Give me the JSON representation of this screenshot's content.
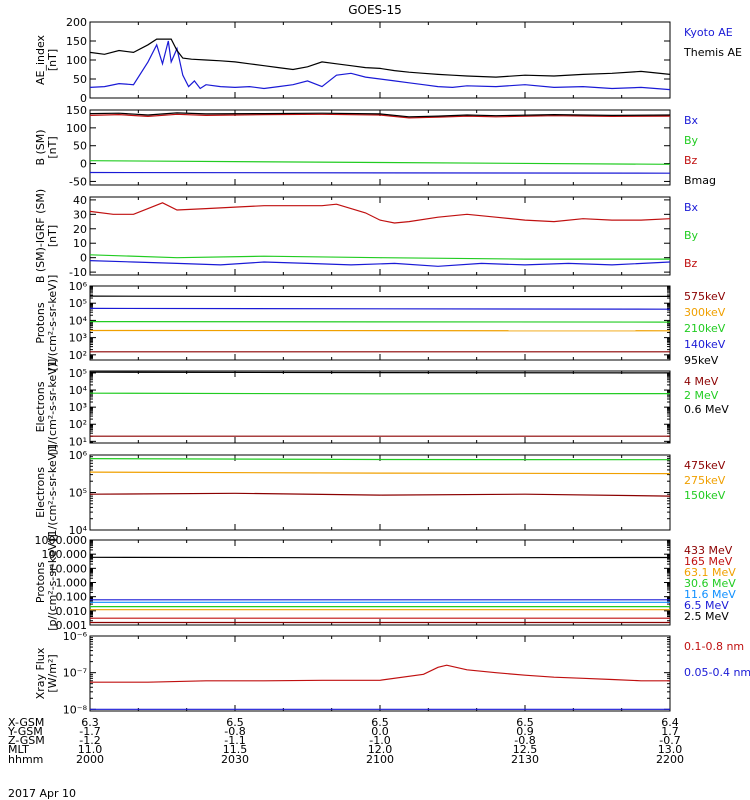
{
  "figure": {
    "title": "GOES-15",
    "date": "2017 Apr 10"
  },
  "colors": {
    "black": "#000000",
    "blue": "#1a1ad6",
    "red": "#c01010",
    "green": "#22cc22",
    "orange": "#f0a000",
    "ltblue": "#1090ff",
    "pink": "#e01090",
    "darkred": "#8b0000",
    "magenta": "#cc22cc"
  },
  "orbit": {
    "row_labels": [
      "X-GSM",
      "Y-GSM",
      "Z-GSM",
      "MLT",
      "hhmm"
    ],
    "columns": [
      {
        "values": [
          "6.3",
          "-1.7",
          "-1.2",
          "11.0",
          "2000"
        ]
      },
      {
        "values": [
          "6.5",
          "-0.8",
          "-1.1",
          "11.5",
          "2030"
        ]
      },
      {
        "values": [
          "6.5",
          "0.0",
          "-1.0",
          "12.0",
          "2100"
        ]
      },
      {
        "values": [
          "6.5",
          "0.9",
          "-0.8",
          "12.5",
          "2130"
        ]
      },
      {
        "values": [
          "6.4",
          "1.7",
          "-0.7",
          "13.0",
          "2200"
        ]
      }
    ]
  },
  "chart_data": [
    {
      "type": "line",
      "ylabel": "AE_index\n[nT]",
      "ylim": [
        0,
        200
      ],
      "yticks": [
        "0",
        "50",
        "100",
        "150",
        "200"
      ],
      "xlim": [
        2000,
        2200
      ],
      "series": [
        {
          "name": "Kyoto AE",
          "color": "blue",
          "x": [
            2000,
            2005,
            2010,
            2015,
            2020,
            2023,
            2025,
            2027,
            2028,
            2030,
            2032,
            2034,
            2036,
            2038,
            2040,
            2045,
            2050,
            2055,
            2060,
            2065,
            2070,
            2075,
            2080,
            2085,
            2090,
            2095,
            2100,
            2105,
            2110,
            2115,
            2120,
            2125,
            2130,
            2140,
            2150,
            2160,
            2170,
            2180,
            2190,
            2200
          ],
          "y": [
            28,
            30,
            38,
            35,
            95,
            140,
            90,
            150,
            95,
            130,
            60,
            30,
            45,
            25,
            35,
            30,
            28,
            30,
            25,
            30,
            35,
            45,
            30,
            60,
            65,
            55,
            50,
            45,
            40,
            35,
            30,
            28,
            32,
            30,
            35,
            28,
            30,
            25,
            28,
            22
          ]
        },
        {
          "name": "Themis AE",
          "color": "black",
          "x": [
            2000,
            2005,
            2010,
            2015,
            2020,
            2023,
            2025,
            2028,
            2030,
            2032,
            2035,
            2040,
            2045,
            2050,
            2055,
            2060,
            2065,
            2070,
            2075,
            2080,
            2085,
            2090,
            2095,
            2100,
            2105,
            2110,
            2115,
            2120,
            2125,
            2130,
            2140,
            2150,
            2160,
            2170,
            2180,
            2190,
            2200
          ],
          "y": [
            120,
            115,
            125,
            120,
            140,
            155,
            155,
            155,
            125,
            105,
            102,
            100,
            98,
            95,
            90,
            85,
            80,
            75,
            82,
            95,
            90,
            85,
            80,
            78,
            72,
            68,
            65,
            62,
            60,
            58,
            55,
            60,
            58,
            62,
            65,
            70,
            62
          ]
        }
      ]
    },
    {
      "type": "line",
      "ylabel": "B (SM)\n[nT]",
      "ylim": [
        -60,
        150
      ],
      "yticks": [
        "-50",
        "0",
        "50",
        "100",
        "150"
      ],
      "xlim": [
        2000,
        2200
      ],
      "series": [
        {
          "name": "Bx",
          "color": "blue",
          "x": [
            2000,
            2200
          ],
          "y": [
            -25,
            -27
          ]
        },
        {
          "name": "By",
          "color": "green",
          "x": [
            2000,
            2100,
            2200
          ],
          "y": [
            8,
            3,
            -2
          ]
        },
        {
          "name": "Bz",
          "color": "red",
          "x": [
            2000,
            2010,
            2020,
            2030,
            2040,
            2060,
            2080,
            2100,
            2110,
            2120,
            2130,
            2140,
            2160,
            2180,
            2200
          ],
          "y": [
            135,
            137,
            132,
            138,
            135,
            137,
            138,
            136,
            128,
            130,
            133,
            131,
            134,
            132,
            133
          ]
        },
        {
          "name": "Bmag",
          "color": "black",
          "x": [
            2000,
            2010,
            2020,
            2030,
            2040,
            2060,
            2080,
            2100,
            2110,
            2120,
            2130,
            2140,
            2160,
            2180,
            2200
          ],
          "y": [
            140,
            141,
            136,
            142,
            139,
            140,
            141,
            139,
            131,
            133,
            136,
            134,
            137,
            135,
            136
          ]
        }
      ]
    },
    {
      "type": "line",
      "ylabel": "B (SM)-IGRF (SM)\n[nT]",
      "ylim": [
        -12,
        42
      ],
      "yticks": [
        "-10",
        "0",
        "10",
        "20",
        "30",
        "40"
      ],
      "xlim": [
        2000,
        2200
      ],
      "series": [
        {
          "name": "Bx",
          "color": "blue",
          "x": [
            2000,
            2015,
            2030,
            2045,
            2060,
            2075,
            2090,
            2105,
            2120,
            2135,
            2150,
            2165,
            2180,
            2200
          ],
          "y": [
            -2,
            -3,
            -4,
            -5,
            -3,
            -4,
            -5,
            -4,
            -6,
            -4,
            -5,
            -4,
            -5,
            -3
          ]
        },
        {
          "name": "By",
          "color": "green",
          "x": [
            2000,
            2030,
            2060,
            2100,
            2150,
            2200
          ],
          "y": [
            2,
            0,
            1,
            0,
            -1,
            -1
          ]
        },
        {
          "name": "Bz",
          "color": "red",
          "x": [
            2000,
            2008,
            2015,
            2020,
            2025,
            2030,
            2040,
            2050,
            2060,
            2070,
            2080,
            2085,
            2090,
            2095,
            2100,
            2105,
            2110,
            2120,
            2130,
            2140,
            2150,
            2160,
            2170,
            2180,
            2190,
            2200
          ],
          "y": [
            32,
            30,
            30,
            34,
            38,
            33,
            34,
            35,
            36,
            36,
            36,
            37,
            34,
            31,
            26,
            24,
            25,
            28,
            30,
            28,
            26,
            25,
            27,
            26,
            26,
            27
          ]
        }
      ]
    },
    {
      "type": "line",
      "ylabel": "Protons\n[1/(cm²-s-sr-keV)]",
      "yscale": "log",
      "ylim": [
        50,
        1000000
      ],
      "yticks": [
        "10²",
        "10³",
        "10⁴",
        "10⁵",
        "10⁶"
      ],
      "xlim": [
        2000,
        2200
      ],
      "series": [
        {
          "name": "575keV",
          "color": "darkred",
          "x": [
            2000,
            2200
          ],
          "y": [
            150,
            150
          ]
        },
        {
          "name": "300keV",
          "color": "orange",
          "x": [
            2000,
            2200
          ],
          "y": [
            2600,
            2500
          ]
        },
        {
          "name": "210keV",
          "color": "green",
          "x": [
            2000,
            2200
          ],
          "y": [
            8500,
            8000
          ]
        },
        {
          "name": "140keV",
          "color": "blue",
          "x": [
            2000,
            2200
          ],
          "y": [
            50000,
            45000
          ]
        },
        {
          "name": "95keV",
          "color": "black",
          "x": [
            2000,
            2100,
            2200
          ],
          "y": [
            260000,
            240000,
            250000
          ]
        }
      ]
    },
    {
      "type": "line",
      "ylabel": "Electrons\n[1/(cm²-s-sr-keV)]",
      "yscale": "log",
      "ylim": [
        8,
        130000
      ],
      "yticks": [
        "10¹",
        "10²",
        "10³",
        "10⁴",
        "10⁵"
      ],
      "xlim": [
        2000,
        2200
      ],
      "series": [
        {
          "name": "4 MeV",
          "color": "darkred",
          "x": [
            2000,
            2200
          ],
          "y": [
            20,
            20
          ]
        },
        {
          "name": "2 MeV",
          "color": "green",
          "x": [
            2000,
            2100,
            2200
          ],
          "y": [
            6500,
            6000,
            6200
          ]
        },
        {
          "name": "0.6 MeV",
          "color": "black",
          "x": [
            2000,
            2100,
            2200
          ],
          "y": [
            110000,
            105000,
            100000
          ]
        }
      ]
    },
    {
      "type": "line",
      "ylabel": "Electrons\n[1/(cm²-s-sr-keV)]",
      "yscale": "log",
      "ylim": [
        10000,
        1000000
      ],
      "yticks": [
        "10⁴",
        "10⁵",
        "10⁶"
      ],
      "xlim": [
        2000,
        2200
      ],
      "series": [
        {
          "name": "475keV",
          "color": "darkred",
          "x": [
            2000,
            2050,
            2100,
            2150,
            2200
          ],
          "y": [
            90000,
            95000,
            85000,
            90000,
            80000
          ]
        },
        {
          "name": "275keV",
          "color": "orange",
          "x": [
            2000,
            2100,
            2200
          ],
          "y": [
            350000,
            330000,
            320000
          ]
        },
        {
          "name": "150keV",
          "color": "green",
          "x": [
            2000,
            2100,
            2200
          ],
          "y": [
            800000,
            760000,
            750000
          ]
        }
      ]
    },
    {
      "type": "line",
      "ylabel": "Protons\n[p/(cm²-s-sr-keV)]",
      "yscale": "log",
      "ylim": [
        0.001,
        1000
      ],
      "yticks": [
        "0.001",
        "0.010",
        "0.100",
        "1.000",
        "10.000",
        "100.000",
        "1000.000"
      ],
      "xlim": [
        2000,
        2200
      ],
      "series": [
        {
          "name": "433 MeV",
          "color": "darkred",
          "x": [
            2000,
            2200
          ],
          "y": [
            0.0015,
            0.0015
          ]
        },
        {
          "name": "165 MeV",
          "color": "red",
          "x": [
            2000,
            2200
          ],
          "y": [
            0.003,
            0.003
          ]
        },
        {
          "name": "63.1 MeV",
          "color": "orange",
          "x": [
            2000,
            2200
          ],
          "y": [
            0.012,
            0.012
          ]
        },
        {
          "name": "30.6 MeV",
          "color": "green",
          "x": [
            2000,
            2200
          ],
          "y": [
            0.02,
            0.02
          ]
        },
        {
          "name": "11.6 MeV",
          "color": "ltblue",
          "x": [
            2000,
            2200
          ],
          "y": [
            0.04,
            0.04
          ]
        },
        {
          "name": "6.5 MeV",
          "color": "blue",
          "x": [
            2000,
            2200
          ],
          "y": [
            0.06,
            0.06
          ]
        },
        {
          "name": "2.5 MeV",
          "color": "black",
          "x": [
            2000,
            2100,
            2200
          ],
          "y": [
            60,
            55,
            58
          ]
        }
      ]
    },
    {
      "type": "line",
      "ylabel": "Xray Flux\n[W/m²]",
      "yscale": "log",
      "ylim": [
        9e-09,
        1e-06
      ],
      "yticks": [
        "10⁻⁸",
        "10⁻⁷",
        "10⁻⁶"
      ],
      "xlim": [
        2000,
        2200
      ],
      "series": [
        {
          "name": "0.1-0.8 nm",
          "color": "red",
          "x": [
            2000,
            2020,
            2040,
            2060,
            2080,
            2100,
            2115,
            2120,
            2123,
            2130,
            2140,
            2150,
            2160,
            2170,
            2180,
            2190,
            2200
          ],
          "y": [
            5.5e-08,
            5.5e-08,
            6e-08,
            6e-08,
            6.2e-08,
            6.2e-08,
            9e-08,
            1.4e-07,
            1.6e-07,
            1.2e-07,
            1e-07,
            8.5e-08,
            7.5e-08,
            7e-08,
            6.5e-08,
            6e-08,
            6e-08
          ]
        },
        {
          "name": "0.05-0.4 nm",
          "color": "blue",
          "x": [
            2000,
            2050,
            2100,
            2150,
            2200
          ],
          "y": [
            1e-08,
            1e-08,
            1e-08,
            1e-08,
            1e-08
          ]
        }
      ]
    }
  ]
}
